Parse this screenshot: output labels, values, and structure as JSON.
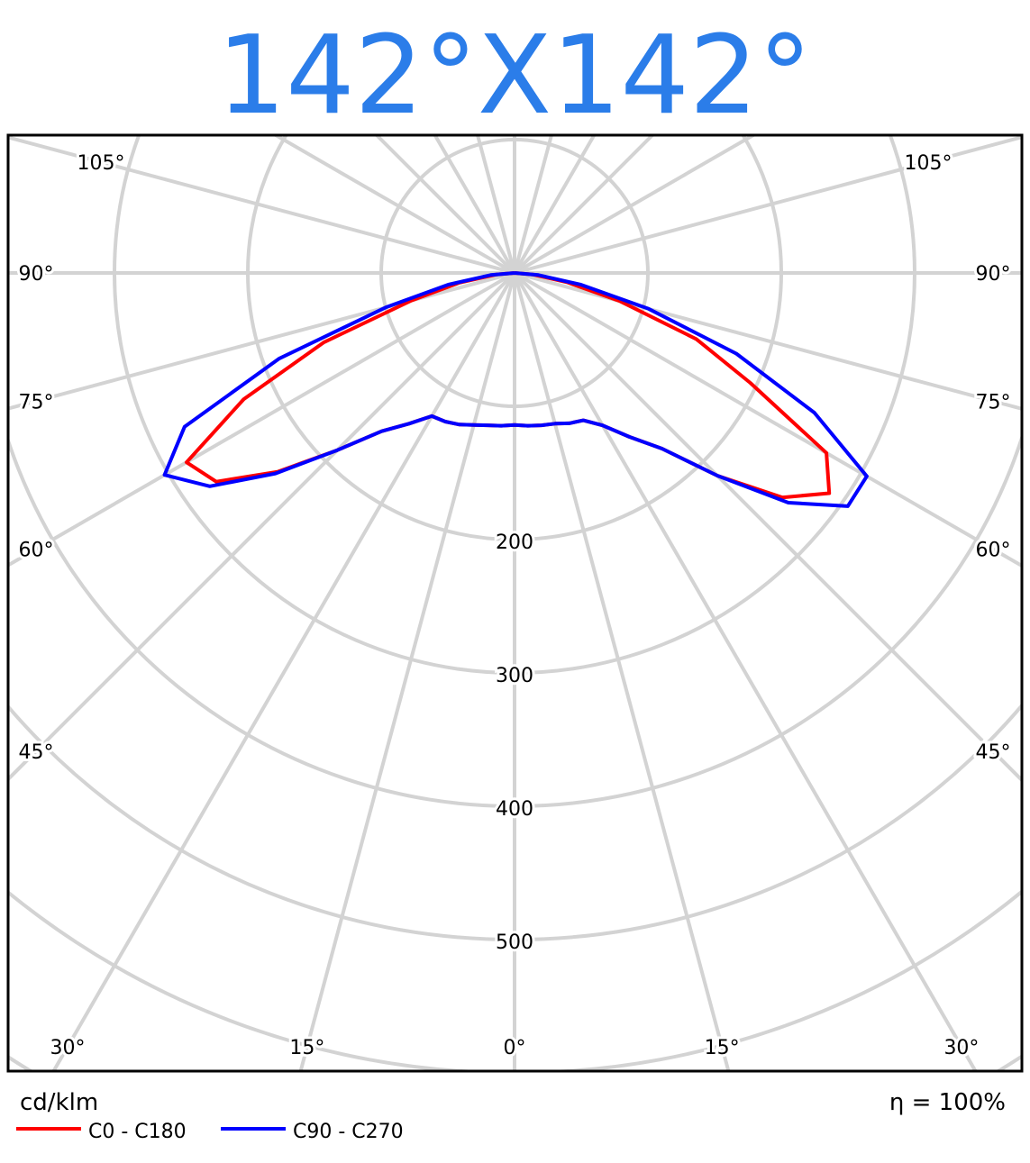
{
  "chart_data": {
    "type": "polar",
    "title": "142°X142°",
    "title_color": "#2b7de9",
    "unit_label": "cd/klm",
    "efficiency_label": "η = 100%",
    "x": [
      -90,
      -85,
      -80,
      -75,
      -70,
      -65,
      -60,
      -55,
      -50,
      -45,
      -40,
      -35,
      -30,
      -25,
      -20,
      -15,
      -10,
      -5,
      0,
      5,
      10,
      15,
      20,
      25,
      30,
      35,
      40,
      45,
      50,
      55,
      60,
      65,
      70,
      75,
      80,
      85,
      90
    ],
    "series": [
      {
        "name": "C0 - C180",
        "color": "#ff0000",
        "values": [
          0,
          14,
          42,
          80,
          152,
          224,
          284,
          273,
          232,
          188,
          155,
          138,
          124,
          123,
          121,
          118,
          116,
          115,
          114,
          115,
          116,
          117,
          120,
          122,
          132,
          150,
          172,
          215,
          262,
          288,
          270,
          195,
          145,
          82,
          40,
          14,
          0
        ]
      },
      {
        "name": "C90 - C270",
        "color": "#0000ff",
        "values": [
          0,
          18,
          50,
          100,
          188,
          273,
          303,
          279,
          234,
          188,
          155,
          138,
          124,
          123,
          121,
          118,
          116,
          115,
          114,
          115,
          116,
          117,
          120,
          122,
          132,
          150,
          172,
          215,
          268,
          305,
          305,
          248,
          177,
          104,
          50,
          18,
          0
        ]
      }
    ],
    "rlim": [
      0,
      700
    ],
    "rticks": [
      {
        "value": 100,
        "label": null
      },
      200,
      300,
      400,
      500,
      {
        "value": 600,
        "label": null
      },
      {
        "value": 700,
        "label": null
      }
    ],
    "angle_ticks": [
      {
        "value": 0,
        "label": "0°"
      },
      {
        "value": 15,
        "label": "15°"
      },
      {
        "value": 30,
        "label": "30°"
      },
      {
        "value": 45,
        "label": "45°"
      },
      {
        "value": 60,
        "label": "60°"
      },
      {
        "value": 75,
        "label": "75°"
      },
      {
        "value": 90,
        "label": "90°"
      },
      {
        "value": 105,
        "label": "105°"
      },
      {
        "value": 120,
        "label": null
      },
      {
        "value": 135,
        "label": null
      },
      {
        "value": 150,
        "label": null
      },
      {
        "value": 165,
        "label": null
      },
      {
        "value": 180,
        "label": null
      }
    ],
    "grid": true
  }
}
